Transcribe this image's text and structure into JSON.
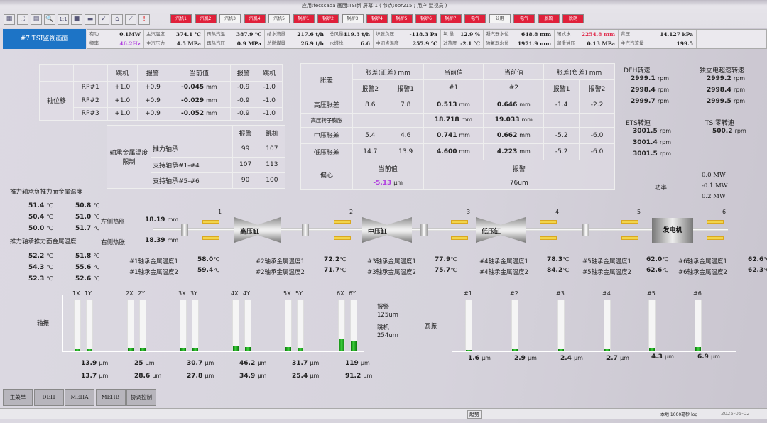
{
  "titlebar": {
    "text": "应用:fecscada  画面:TSI新  屏幕:1 ( 节点:opr215 ; 用户:监视员 )"
  },
  "toolbar": {
    "icons": [
      "grid-icon",
      "fullscreen-icon",
      "print-icon",
      "zoom-in-icon",
      "actual-size-icon",
      "save-icon",
      "minus-icon",
      "check-icon",
      "home-icon",
      "trend-icon",
      "alarm-icon"
    ],
    "actual_size_label": "1:1"
  },
  "nav_buttons": [
    {
      "label": "汽机1",
      "state": "alarm"
    },
    {
      "label": "汽机2",
      "state": "alarm"
    },
    {
      "label": "汽机3",
      "state": "normal"
    },
    {
      "label": "汽机4",
      "state": "alarm"
    },
    {
      "label": "汽机5",
      "state": "normal"
    },
    {
      "label": "锅炉1",
      "state": "alarm"
    },
    {
      "label": "锅炉2",
      "state": "alarm"
    },
    {
      "label": "锅炉3",
      "state": "normal"
    },
    {
      "label": "锅炉4",
      "state": "alarm"
    },
    {
      "label": "锅炉5",
      "state": "alarm"
    },
    {
      "label": "锅炉6",
      "state": "alarm"
    },
    {
      "label": "锅炉7",
      "state": "alarm"
    },
    {
      "label": "电气",
      "state": "alarm"
    },
    {
      "label": "公用",
      "state": "normal"
    },
    {
      "label": "电气",
      "state": "alarm"
    },
    {
      "label": "脱硫",
      "state": "alarm"
    },
    {
      "label": "脱硝",
      "state": "alarm"
    }
  ],
  "colors": {
    "alarm": "#e0203a",
    "accent": "#1d74c6",
    "bar_fill": "#2fbf2f",
    "bearing": "#f2d44b",
    "purple_value": "#b040e0",
    "red_value": "#e03050"
  },
  "screen_title": "#7 TSI监视画面",
  "info": [
    [
      {
        "label": "有功",
        "value": "0.1MW"
      },
      {
        "label": "频率",
        "value": "46.2Hz",
        "color": "#b040e0"
      }
    ],
    [
      {
        "label": "主汽温度",
        "value": "374.1 ℃"
      },
      {
        "label": "主汽压力",
        "value": "4.5 MPa"
      }
    ],
    [
      {
        "label": "再热汽温",
        "value": "387.9 ℃"
      },
      {
        "label": "再热汽压",
        "value": "0.9 MPa"
      }
    ],
    [
      {
        "label": "给水流量",
        "value": "217.6 t/h"
      },
      {
        "label": "总燃煤量",
        "value": "26.9 t/h"
      }
    ],
    [
      {
        "label": "总风量",
        "value": "419.3 t/h"
      },
      {
        "label": "水煤比",
        "value": "6.6"
      }
    ],
    [
      {
        "label": "炉膛负压",
        "value": "-118.3 Pa"
      },
      {
        "label": "中间点温度",
        "value": "257.9 ℃"
      }
    ],
    [
      {
        "label": "氧 量",
        "value": "12.9 %"
      },
      {
        "label": "过热度",
        "value": "-2.1 ℃"
      }
    ],
    [
      {
        "label": "凝汽器水位",
        "value": "648.8 mm"
      },
      {
        "label": "除氧器水位",
        "value": "1971.9 mm"
      }
    ],
    [
      {
        "label": "闭式水",
        "value": "2254.8 mm",
        "color": "#e03050"
      },
      {
        "label": "润滑油压",
        "value": "0.13 MPa"
      }
    ],
    [
      {
        "label": "背压",
        "value": "14.127 kPa"
      },
      {
        "label": "主汽汽流量",
        "value": "199.5"
      }
    ]
  ],
  "axial": {
    "title": "轴位移",
    "headers": [
      "跳机",
      "报警",
      "当前值",
      "报警",
      "跳机"
    ],
    "rows": [
      {
        "name": "RP#1",
        "trip_hi": "+1.0",
        "alarm_hi": "+0.9",
        "value": "-0.045",
        "unit": "mm",
        "alarm_lo": "-0.9",
        "trip_lo": "-1.0"
      },
      {
        "name": "RP#2",
        "trip_hi": "+1.0",
        "alarm_hi": "+0.9",
        "value": "-0.029",
        "unit": "mm",
        "alarm_lo": "-0.9",
        "trip_lo": "-1.0"
      },
      {
        "name": "RP#3",
        "trip_hi": "+1.0",
        "alarm_hi": "+0.9",
        "value": "-0.052",
        "unit": "mm",
        "alarm_lo": "-0.9",
        "trip_lo": "-1.0"
      }
    ]
  },
  "bearing_limits": {
    "title": "轴承金属温度限制",
    "headers": [
      "报警",
      "跳机"
    ],
    "rows": [
      {
        "name": "推力轴承",
        "alarm": "99",
        "trip": "107"
      },
      {
        "name": "支持轴承#1-#4",
        "alarm": "107",
        "trip": "113"
      },
      {
        "name": "支持轴承#5-#6",
        "alarm": "90",
        "trip": "100"
      }
    ]
  },
  "expansion": {
    "title": "胀差",
    "pos_header": "胀差(正差) mm",
    "neg_header": "胀差(负差) mm",
    "cur_header": "当前值",
    "sub": [
      "报警2",
      "报警1",
      "#1",
      "#2",
      "报警1",
      "报警2"
    ],
    "rows": [
      {
        "name": "高压胀差",
        "p2": "8.6",
        "p1": "7.8",
        "v1": "0.513",
        "v2": "0.646",
        "n1": "-1.4",
        "n2": "-2.2"
      },
      {
        "name": "高压转子膨胀",
        "p2": "",
        "p1": "",
        "v1": "18.718",
        "v2": "19.033",
        "n1": "",
        "n2": ""
      },
      {
        "name": "中压胀差",
        "p2": "5.4",
        "p1": "4.6",
        "v1": "0.741",
        "v2": "0.662",
        "n1": "-5.2",
        "n2": "-6.0"
      },
      {
        "name": "低压胀差",
        "p2": "14.7",
        "p1": "13.9",
        "v1": "4.600",
        "v2": "4.223",
        "n1": "-5.2",
        "n2": "-6.0"
      }
    ],
    "unit": "mm",
    "eccentricity": {
      "title": "偏心",
      "cur_label": "当前值",
      "value": "-5.13",
      "unit": "µm",
      "alarm_label": "报警",
      "alarm": "76um"
    }
  },
  "speeds": {
    "deh": {
      "title": "DEH转速",
      "values": [
        "2999.1",
        "2998.4",
        "2999.7"
      ]
    },
    "independent": {
      "title": "独立电超速转速",
      "values": [
        "2999.2",
        "2998.4",
        "2999.5"
      ]
    },
    "ets": {
      "title": "ETS转速",
      "values": [
        "3001.5",
        "3001.4",
        "3001.5"
      ]
    },
    "tsi_zero": {
      "title": "TSI零转速",
      "values": [
        "500.2"
      ]
    },
    "unit": "rpm"
  },
  "power": {
    "label": "功率",
    "values": [
      "0.0",
      "-0.1",
      "0.2"
    ],
    "unit": "MW"
  },
  "thrust_temps": {
    "neg_title": "推力轴承负推力面金属温度",
    "neg": [
      [
        "51.4",
        "50.8"
      ],
      [
        "50.4",
        "51.0"
      ],
      [
        "50.0",
        "51.7"
      ]
    ],
    "pos_title": "推力轴承推力面金属温度",
    "pos": [
      [
        "52.2",
        "51.8"
      ],
      [
        "54.3",
        "55.6"
      ],
      [
        "52.3",
        "52.6"
      ]
    ],
    "unit": "℃"
  },
  "thermal_expansion": {
    "left_label": "左侧热胀",
    "left": "18.19",
    "right_label": "右侧热胀",
    "right": "18.39",
    "unit": "mm"
  },
  "casings": {
    "hp": "高压缸",
    "ip": "中压缸",
    "lp": "低压缸",
    "gen": "发电机"
  },
  "bearings": [
    {
      "num": "1",
      "l1": "#1轴承金属温度1",
      "t1": "58.0",
      "l2": "#1轴承金属温度2",
      "t2": "59.4"
    },
    {
      "num": "2",
      "l1": "#2轴承金属温度1",
      "t1": "72.2",
      "l2": "#2轴承金属温度2",
      "t2": "71.7"
    },
    {
      "num": "3",
      "l1": "#3轴承金属温度1",
      "t1": "77.9",
      "l2": "#3轴承金属温度2",
      "t2": "75.7"
    },
    {
      "num": "4",
      "l1": "#4轴承金属温度1",
      "t1": "78.3",
      "l2": "#4轴承金属温度2",
      "t2": "84.2"
    },
    {
      "num": "5",
      "l1": "#5轴承金属温度1",
      "t1": "62.0",
      "l2": "#5轴承金属温度2",
      "t2": "62.6"
    },
    {
      "num": "6",
      "l1": "#6轴承金属温度1",
      "t1": "62.6",
      "l2": "#6轴承金属温度2",
      "t2": "62.3"
    }
  ],
  "temp_unit": "℃",
  "shaft_vib": {
    "label": "轴振",
    "unit": "µm",
    "alarm_label": "报警",
    "alarm": "125um",
    "trip_label": "跳机",
    "trip": "254um",
    "pairs": [
      {
        "x": "1X",
        "y": "1Y",
        "vx": 13.9,
        "vy": 13.7
      },
      {
        "x": "2X",
        "y": "2Y",
        "vx": 25.0,
        "vy": 28.6
      },
      {
        "x": "3X",
        "y": "3Y",
        "vx": 30.7,
        "vy": 27.8
      },
      {
        "x": "4X",
        "y": "4Y",
        "vx": 46.2,
        "vy": 34.9
      },
      {
        "x": "5X",
        "y": "5Y",
        "vx": 31.7,
        "vy": 25.4
      },
      {
        "x": "6X",
        "y": "6Y",
        "vx": 119.0,
        "vy": 91.2
      }
    ]
  },
  "bearing_vib": {
    "label": "瓦振",
    "unit": "µm",
    "items": [
      {
        "name": "#1",
        "v": 1.6
      },
      {
        "name": "#2",
        "v": 2.9
      },
      {
        "name": "#3",
        "v": 2.4
      },
      {
        "name": "#4",
        "v": 2.7
      },
      {
        "name": "#5",
        "v": 4.3
      },
      {
        "name": "#6",
        "v": 6.9
      }
    ]
  },
  "bottom_buttons": [
    "主菜单",
    "DEH",
    "MEHA",
    "MEHB",
    "协调控制"
  ],
  "status": {
    "center": "趋势",
    "right": "本地 1000毫秒 log",
    "datetime": "2025-05-02"
  }
}
